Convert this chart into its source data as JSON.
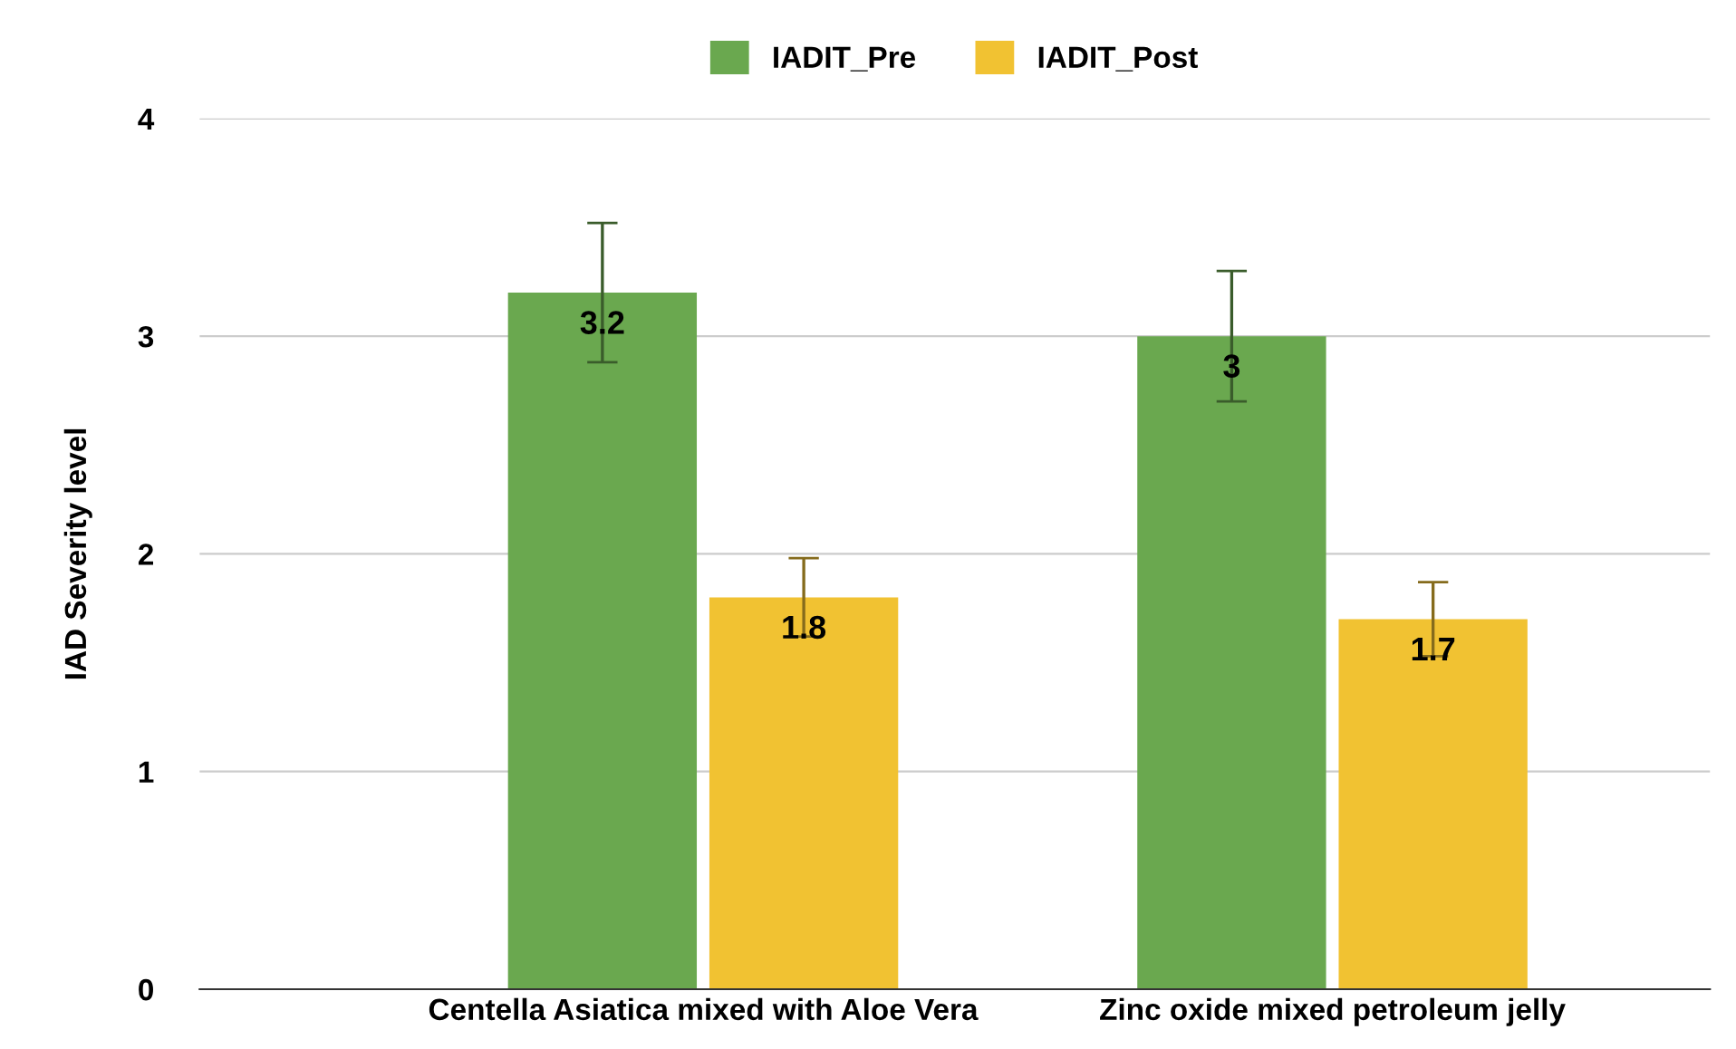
{
  "chart_data": {
    "type": "bar",
    "ylabel": "IAD Severity level",
    "categories": [
      "Centella Asiatica mixed with Aloe Vera",
      "Zinc oxide mixed petroleum jelly"
    ],
    "series": [
      {
        "name": "IADIT_Pre",
        "color": "#6aa84f",
        "values": [
          3.2,
          3
        ],
        "errors": [
          0.32,
          0.3
        ]
      },
      {
        "name": "IADIT_Post",
        "color": "#f1c232",
        "values": [
          1.8,
          1.7
        ],
        "errors": [
          0.18,
          0.17
        ]
      }
    ],
    "ylim": [
      0,
      4
    ],
    "yticks": [
      0,
      1,
      2,
      3,
      4
    ],
    "grid": "y",
    "legend": "top",
    "data_labels": true
  }
}
